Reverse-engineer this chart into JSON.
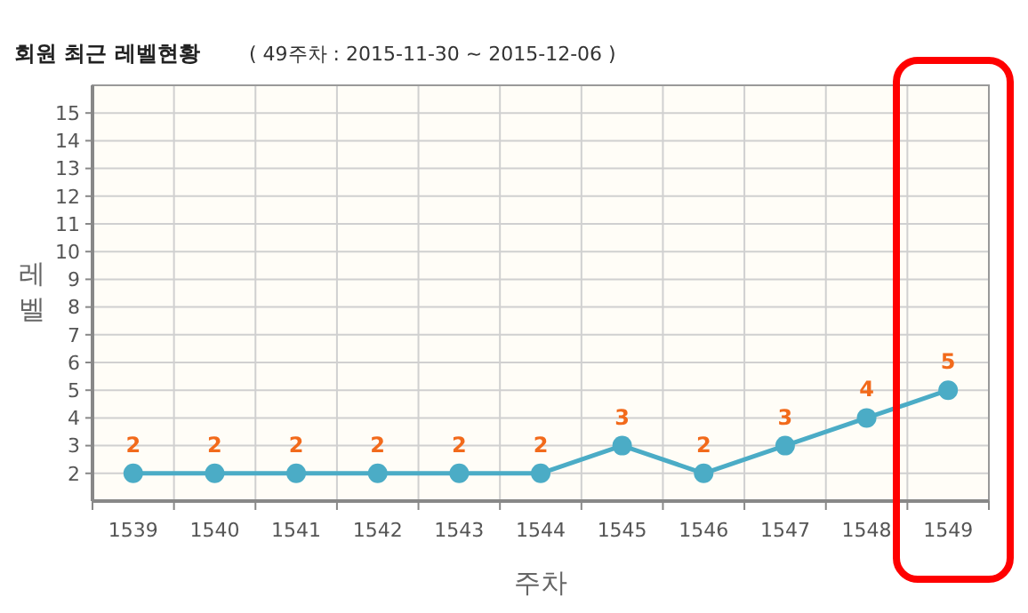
{
  "chart_data": {
    "type": "line",
    "title": "회원 최근 레벨현황",
    "subtitle": "( 49주차 : 2015-11-30 ~ 2015-12-06 )",
    "xlabel": "주차",
    "ylabel": "레벨",
    "categories": [
      "1539",
      "1540",
      "1541",
      "1542",
      "1543",
      "1544",
      "1545",
      "1546",
      "1547",
      "1548",
      "1549"
    ],
    "series": [
      {
        "color": "#4bacc6",
        "values": [
          2,
          2,
          2,
          2,
          2,
          2,
          3,
          2,
          3,
          4,
          5
        ]
      }
    ],
    "ylim": [
      1,
      16
    ],
    "yticks": [
      2,
      3,
      4,
      5,
      6,
      7,
      8,
      9,
      10,
      11,
      12,
      13,
      14,
      15
    ],
    "grid": true,
    "data_labels": true,
    "marker": "circle"
  }
}
